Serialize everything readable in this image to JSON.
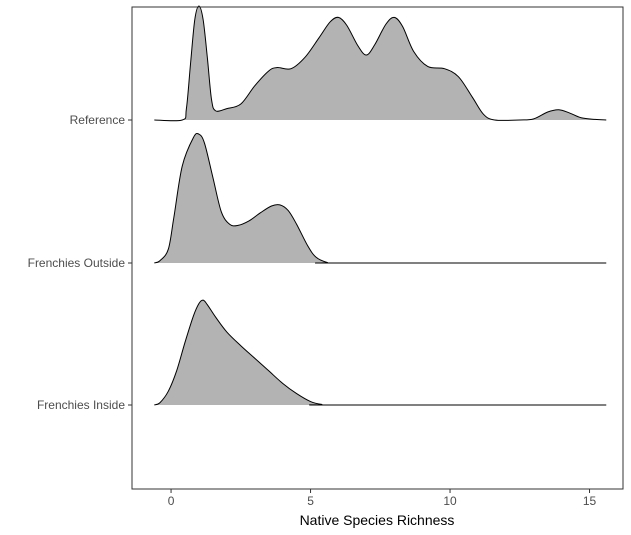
{
  "chart_data": {
    "type": "ridgeline",
    "title": "",
    "xlabel": "Native Species Richness",
    "ylabel": "",
    "xlim": [
      -1.4,
      16.2
    ],
    "x_ticks": [
      0,
      5,
      10,
      15
    ],
    "grid": false,
    "legend": "none",
    "fill_color": "#b3b3b3",
    "line_color": "#000000",
    "categories": [
      "Reference",
      "Frenchies Outside",
      "Frenchies Inside"
    ],
    "series": [
      {
        "name": "Reference",
        "points": [
          [
            -0.6,
            0
          ],
          [
            0.4,
            0
          ],
          [
            0.55,
            0.1
          ],
          [
            0.7,
            0.5
          ],
          [
            0.85,
            0.88
          ],
          [
            1.0,
            1.0
          ],
          [
            1.15,
            0.88
          ],
          [
            1.3,
            0.55
          ],
          [
            1.45,
            0.18
          ],
          [
            1.6,
            0.08
          ],
          [
            2.0,
            0.1
          ],
          [
            2.5,
            0.14
          ],
          [
            3.0,
            0.3
          ],
          [
            3.5,
            0.43
          ],
          [
            3.8,
            0.46
          ],
          [
            4.3,
            0.45
          ],
          [
            4.8,
            0.55
          ],
          [
            5.3,
            0.72
          ],
          [
            5.7,
            0.86
          ],
          [
            6.0,
            0.9
          ],
          [
            6.3,
            0.83
          ],
          [
            6.7,
            0.65
          ],
          [
            7.0,
            0.57
          ],
          [
            7.3,
            0.66
          ],
          [
            7.7,
            0.84
          ],
          [
            8.0,
            0.9
          ],
          [
            8.3,
            0.82
          ],
          [
            8.7,
            0.6
          ],
          [
            9.2,
            0.47
          ],
          [
            9.8,
            0.45
          ],
          [
            10.3,
            0.38
          ],
          [
            10.8,
            0.2
          ],
          [
            11.2,
            0.05
          ],
          [
            11.6,
            0
          ],
          [
            12.5,
            0
          ],
          [
            13.0,
            0.01
          ],
          [
            13.5,
            0.07
          ],
          [
            13.9,
            0.09
          ],
          [
            14.3,
            0.06
          ],
          [
            14.7,
            0.02
          ],
          [
            15.2,
            0.005
          ],
          [
            15.6,
            0
          ]
        ]
      },
      {
        "name": "Frenchies Outside",
        "points": [
          [
            -0.6,
            0
          ],
          [
            -0.4,
            0.02
          ],
          [
            -0.1,
            0.12
          ],
          [
            0.1,
            0.4
          ],
          [
            0.4,
            0.85
          ],
          [
            0.8,
            1.1
          ],
          [
            1.0,
            1.13
          ],
          [
            1.2,
            1.05
          ],
          [
            1.5,
            0.75
          ],
          [
            1.8,
            0.45
          ],
          [
            2.1,
            0.34
          ],
          [
            2.4,
            0.33
          ],
          [
            2.8,
            0.37
          ],
          [
            3.2,
            0.44
          ],
          [
            3.6,
            0.5
          ],
          [
            3.9,
            0.51
          ],
          [
            4.2,
            0.46
          ],
          [
            4.5,
            0.34
          ],
          [
            4.9,
            0.15
          ],
          [
            5.2,
            0.05
          ],
          [
            5.6,
            0.005
          ],
          [
            6.0,
            0
          ],
          [
            15.6,
            0
          ]
        ]
      },
      {
        "name": "Frenchies Inside",
        "points": [
          [
            -0.6,
            0
          ],
          [
            -0.4,
            0.02
          ],
          [
            -0.1,
            0.12
          ],
          [
            0.2,
            0.3
          ],
          [
            0.5,
            0.55
          ],
          [
            0.8,
            0.78
          ],
          [
            1.0,
            0.89
          ],
          [
            1.15,
            0.92
          ],
          [
            1.3,
            0.88
          ],
          [
            1.6,
            0.77
          ],
          [
            2.0,
            0.64
          ],
          [
            2.5,
            0.52
          ],
          [
            3.0,
            0.41
          ],
          [
            3.5,
            0.3
          ],
          [
            4.0,
            0.19
          ],
          [
            4.5,
            0.1
          ],
          [
            5.0,
            0.03
          ],
          [
            5.4,
            0.005
          ],
          [
            5.8,
            0
          ],
          [
            15.6,
            0
          ]
        ]
      }
    ]
  }
}
